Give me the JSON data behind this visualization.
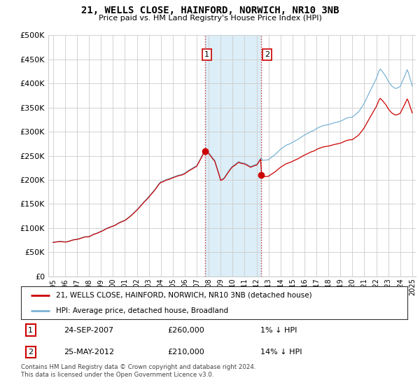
{
  "title": "21, WELLS CLOSE, HAINFORD, NORWICH, NR10 3NB",
  "subtitle": "Price paid vs. HM Land Registry's House Price Index (HPI)",
  "legend_line1": "21, WELLS CLOSE, HAINFORD, NORWICH, NR10 3NB (detached house)",
  "legend_line2": "HPI: Average price, detached house, Broadland",
  "transaction1_date": "24-SEP-2007",
  "transaction1_price": 260000,
  "transaction1_label": "1% ↓ HPI",
  "transaction1_year": 2007.71,
  "transaction2_date": "25-MAY-2012",
  "transaction2_price": 210000,
  "transaction2_label": "14% ↓ HPI",
  "transaction2_year": 2012.38,
  "footnote": "Contains HM Land Registry data © Crown copyright and database right 2024.\nThis data is licensed under the Open Government Licence v3.0.",
  "hpi_color": "#7ab3d4",
  "price_color": "#cc0000",
  "shading_color": "#dceef7",
  "ylim_min": 0,
  "ylim_max": 500000,
  "xmin": 1994.6,
  "xmax": 2025.3,
  "grid_color": "#cccccc"
}
